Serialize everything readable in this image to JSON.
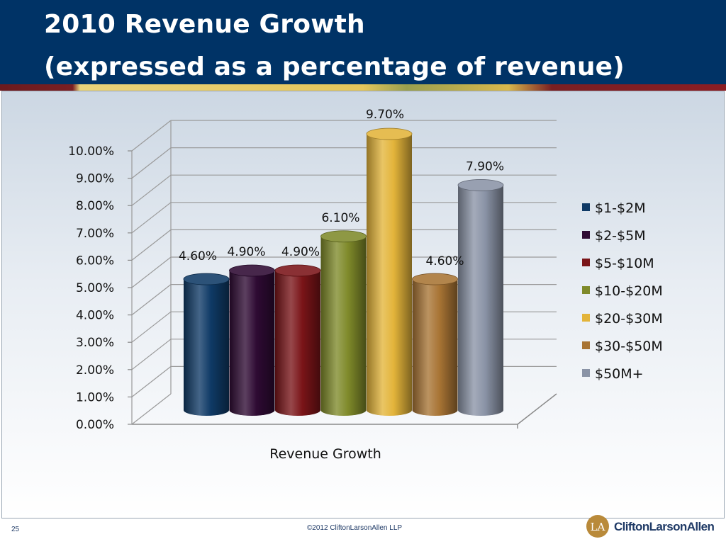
{
  "header": {
    "title_line_1": "2010 Revenue Growth",
    "title_line_2": "(expressed as a percentage of revenue)",
    "background_color": "#003366"
  },
  "chart_data": {
    "type": "bar",
    "title": "",
    "xlabel": "Revenue Growth",
    "ylabel": "",
    "ylim": [
      0,
      10
    ],
    "ytick_labels": [
      "0.00%",
      "1.00%",
      "2.00%",
      "3.00%",
      "4.00%",
      "5.00%",
      "6.00%",
      "7.00%",
      "8.00%",
      "9.00%",
      "10.00%"
    ],
    "grid": true,
    "style": "3d-cylinder",
    "legend_position": "right",
    "categories": [
      "Revenue Growth"
    ],
    "series": [
      {
        "name": "$1-$2M",
        "values": [
          4.6
        ],
        "label": "4.60%",
        "color": "#0f3a66"
      },
      {
        "name": "$2-$5M",
        "values": [
          4.9
        ],
        "label": "4.90%",
        "color": "#2e0a33"
      },
      {
        "name": "$5-$10M",
        "values": [
          4.9
        ],
        "label": "4.90%",
        "color": "#7a1418"
      },
      {
        "name": "$10-$20M",
        "values": [
          6.1
        ],
        "label": "6.10%",
        "color": "#7f8a2a"
      },
      {
        "name": "$20-$30M",
        "values": [
          9.7
        ],
        "label": "9.70%",
        "color": "#e3b43a"
      },
      {
        "name": "$30-$50M",
        "values": [
          4.6
        ],
        "label": "4.60%",
        "color": "#a87434"
      },
      {
        "name": "$50M+",
        "values": [
          7.9
        ],
        "label": "7.90%",
        "color": "#8a93a6"
      }
    ]
  },
  "footer": {
    "page_number": "25",
    "copyright": "©2012 CliftonLarsonAllen LLP",
    "logo_text": "CliftonLarsonAllen",
    "logo_mark_text": "LA",
    "logo_color": "#b98a3a"
  }
}
